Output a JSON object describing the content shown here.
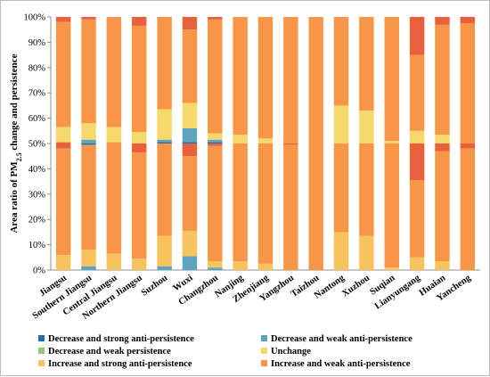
{
  "chart_data": {
    "type": "bar",
    "stacked": true,
    "percent": true,
    "ylabel_main": "Area ratio of PM",
    "ylabel_sub": "2.5",
    "ylabel_tail": " change and persistence",
    "ylim": [
      0,
      100
    ],
    "y_ticks": [
      "0%",
      "10%",
      "20%",
      "30%",
      "40%",
      "50%",
      "60%",
      "70%",
      "80%",
      "90%",
      "100%"
    ],
    "grid": false,
    "legend_position": "bottom",
    "categories": [
      "Jiangsu",
      "Southern Jiangsu",
      "Central Jiangsu",
      "Northern Jiangsu",
      "Suzhou",
      "Wuxi",
      "Changzhou",
      "Nanjing",
      "Zhenjiang",
      "Yangzhou",
      "Taizhou",
      "Nantong",
      "Xuzhou",
      "Suqian",
      "Lianyungang",
      "Huaian",
      "Yancheng"
    ],
    "series": [
      {
        "key": "s1",
        "values": [
          0,
          0,
          0,
          0,
          0,
          0,
          0,
          0,
          0,
          0,
          0,
          0,
          0,
          0,
          0,
          0,
          0
        ]
      },
      {
        "key": "s2",
        "values": [
          0,
          0,
          0,
          0,
          0,
          0,
          0,
          0,
          0,
          0,
          0,
          0,
          0,
          0,
          0,
          0,
          0
        ]
      },
      {
        "key": "s3",
        "values": [
          0,
          0,
          0,
          0,
          0,
          0,
          0,
          0,
          0,
          0,
          0,
          0,
          0,
          0,
          0,
          0,
          0
        ]
      },
      {
        "key": "s4",
        "values": [
          0,
          0,
          0,
          0,
          0,
          0,
          0,
          0,
          0,
          0,
          0,
          0,
          0,
          0,
          0,
          0,
          0
        ]
      },
      {
        "key": "s5",
        "values": [
          0,
          0,
          0,
          0,
          0,
          0,
          0,
          0,
          0,
          0,
          0,
          0,
          0,
          0,
          0,
          0,
          0
        ]
      },
      {
        "key": "s6",
        "values": [
          0,
          0,
          0,
          0,
          0,
          0,
          0,
          0,
          0,
          0,
          0,
          0,
          0,
          0,
          0,
          0,
          0
        ]
      }
    ],
    "stacks": [
      [
        [
          "isa",
          6
        ],
        [
          "iwa",
          42
        ],
        [
          "isp",
          2.5
        ],
        [
          "unc",
          6
        ],
        [
          "iwa",
          41.5
        ],
        [
          "isp",
          2
        ]
      ],
      [
        [
          "dwa",
          1.5
        ],
        [
          "isa",
          6.5
        ],
        [
          "iwa",
          41.5
        ],
        [
          "dsa",
          0.5
        ],
        [
          "dwa",
          1.5
        ],
        [
          "unc",
          6.5
        ],
        [
          "iwa",
          41
        ],
        [
          "isp",
          1
        ]
      ],
      [
        [
          "isa",
          6.5
        ],
        [
          "iwa",
          44
        ],
        [
          "unc",
          6
        ],
        [
          "iwa",
          43.5
        ]
      ],
      [
        [
          "isa",
          4.5
        ],
        [
          "iwa",
          42
        ],
        [
          "isp",
          3.5
        ],
        [
          "unc",
          4.5
        ],
        [
          "iwa",
          42
        ],
        [
          "isp",
          3.5
        ]
      ],
      [
        [
          "dwa",
          1.5
        ],
        [
          "isa",
          12
        ],
        [
          "iwa",
          36.5
        ],
        [
          "dsa",
          0.5
        ],
        [
          "dwa",
          1
        ],
        [
          "unc",
          12
        ],
        [
          "iwa",
          36.5
        ]
      ],
      [
        [
          "dwa",
          5.5
        ],
        [
          "isa",
          10
        ],
        [
          "iwa",
          29.5
        ],
        [
          "isp",
          5
        ],
        [
          "dsa",
          0.5
        ],
        [
          "dwa",
          5.5
        ],
        [
          "unc",
          10
        ],
        [
          "iwa",
          29
        ],
        [
          "isp",
          5
        ]
      ],
      [
        [
          "dwa",
          1
        ],
        [
          "isa",
          2.5
        ],
        [
          "iwa",
          45.5
        ],
        [
          "isp",
          1
        ],
        [
          "dsa",
          0.5
        ],
        [
          "dwa",
          1
        ],
        [
          "unc",
          2.5
        ],
        [
          "iwa",
          45
        ],
        [
          "isp",
          1
        ]
      ],
      [
        [
          "isa",
          3.5
        ],
        [
          "iwa",
          46.5
        ],
        [
          "unc",
          3.5
        ],
        [
          "iwa",
          46.5
        ]
      ],
      [
        [
          "isa",
          2.5
        ],
        [
          "iwa",
          47.5
        ],
        [
          "unc",
          2
        ],
        [
          "iwa",
          48
        ]
      ],
      [
        [
          "iwa",
          49.5
        ],
        [
          "isp",
          0.5
        ],
        [
          "iwa",
          50
        ]
      ],
      [
        [
          "iwa",
          50
        ],
        [
          "iwa",
          50
        ]
      ],
      [
        [
          "isa",
          15
        ],
        [
          "iwa",
          35
        ],
        [
          "unc",
          15
        ],
        [
          "iwa",
          35
        ]
      ],
      [
        [
          "isa",
          13.5
        ],
        [
          "iwa",
          36.5
        ],
        [
          "unc",
          13
        ],
        [
          "iwa",
          37
        ]
      ],
      [
        [
          "isa",
          1
        ],
        [
          "iwa",
          49
        ],
        [
          "unc",
          1
        ],
        [
          "iwa",
          49
        ]
      ],
      [
        [
          "isa",
          5
        ],
        [
          "iwa",
          30.5
        ],
        [
          "isp",
          14.5
        ],
        [
          "unc",
          5
        ],
        [
          "iwa",
          30
        ],
        [
          "isp",
          15
        ]
      ],
      [
        [
          "isa",
          3.5
        ],
        [
          "iwa",
          43.5
        ],
        [
          "isp",
          3
        ],
        [
          "unc",
          3.5
        ],
        [
          "iwa",
          43.5
        ],
        [
          "isp",
          3
        ]
      ],
      [
        [
          "iwa",
          48
        ],
        [
          "isp",
          2
        ],
        [
          "iwa",
          47.5
        ],
        [
          "isp",
          2.5
        ]
      ]
    ],
    "colors": {
      "dsa": "#1f6fb2",
      "dwa": "#5fa3bf",
      "dwp": "#93c47d",
      "unc": "#f6d96b",
      "isa": "#f8c35c",
      "iwa": "#f79646",
      "isp": "#e8613c"
    },
    "legend": [
      {
        "key": "dsa",
        "label": "Decrease and strong anti-persistence"
      },
      {
        "key": "dwa",
        "label": "Decrease and weak anti-persistence"
      },
      {
        "key": "dwp",
        "label": "Decrease and weak persistence"
      },
      {
        "key": "unc",
        "label": "Unchange"
      },
      {
        "key": "isa",
        "label": "Increase and strong anti-persistence"
      },
      {
        "key": "iwa",
        "label": "Increase and weak anti-persistence"
      }
    ]
  }
}
